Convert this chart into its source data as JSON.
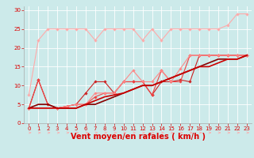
{
  "bg_color": "#cceaea",
  "grid_color": "#ffffff",
  "xlabel": "Vent moyen/en rafales ( km/h )",
  "xlabel_color": "#dd0000",
  "tick_color": "#dd0000",
  "arrow_color": "#ffaaaa",
  "ylim": [
    0,
    31
  ],
  "xlim": [
    -0.5,
    23.5
  ],
  "yticks": [
    0,
    5,
    10,
    15,
    20,
    25,
    30
  ],
  "xticks": [
    0,
    1,
    2,
    3,
    4,
    5,
    6,
    7,
    8,
    9,
    10,
    11,
    12,
    13,
    14,
    15,
    16,
    17,
    18,
    19,
    20,
    21,
    22,
    23
  ],
  "series": [
    {
      "x": [
        0,
        1,
        2,
        3,
        4,
        5,
        6,
        7,
        8,
        9,
        10,
        11,
        12,
        13,
        14,
        15,
        16,
        17,
        18,
        19,
        20,
        21,
        22,
        23
      ],
      "y": [
        7.5,
        22,
        25,
        25,
        25,
        25,
        25,
        22,
        25,
        25,
        25,
        25,
        22,
        25,
        22,
        25,
        25,
        25,
        25,
        25,
        25,
        26,
        29,
        29
      ],
      "color": "#ffaaaa",
      "lw": 0.8,
      "marker": "D",
      "ms": 1.8,
      "zorder": 2
    },
    {
      "x": [
        0,
        1,
        2,
        3,
        4,
        5,
        6,
        7,
        8,
        9,
        10,
        11,
        12,
        13,
        14,
        15,
        16,
        17,
        18,
        19,
        20,
        21,
        22,
        23
      ],
      "y": [
        4,
        11.5,
        5,
        4,
        4.5,
        5,
        8,
        11,
        11,
        8,
        11,
        11,
        11,
        7.5,
        11,
        11,
        11.5,
        11,
        18,
        18,
        18,
        18,
        18,
        18
      ],
      "color": "#cc2222",
      "lw": 0.8,
      "marker": "D",
      "ms": 1.8,
      "zorder": 3
    },
    {
      "x": [
        0,
        1,
        2,
        3,
        4,
        5,
        6,
        7,
        8,
        9,
        10,
        11,
        12,
        13,
        14,
        15,
        16,
        17,
        18,
        19,
        20,
        21,
        22,
        23
      ],
      "y": [
        4,
        11.5,
        5,
        4,
        4.5,
        5,
        5,
        7,
        8,
        8,
        11,
        11,
        11,
        7.5,
        14,
        11,
        11,
        18,
        18,
        18,
        18,
        18,
        18,
        18
      ],
      "color": "#ee4444",
      "lw": 0.8,
      "marker": "D",
      "ms": 1.8,
      "zorder": 3
    },
    {
      "x": [
        0,
        3,
        4,
        5,
        6,
        7,
        8,
        9,
        10,
        11,
        12,
        13,
        14,
        15,
        16,
        17,
        18,
        19,
        20,
        21,
        22,
        23
      ],
      "y": [
        4,
        4,
        4.5,
        5,
        5,
        8,
        8,
        8,
        11,
        14,
        11,
        11,
        14,
        11,
        14.5,
        18,
        18,
        18,
        18,
        18,
        18,
        18
      ],
      "color": "#ff8888",
      "lw": 0.8,
      "marker": "D",
      "ms": 1.8,
      "zorder": 3
    },
    {
      "x": [
        0,
        1,
        2,
        3,
        4,
        5,
        6,
        7,
        8,
        9,
        10,
        11,
        12,
        13,
        14,
        15,
        16,
        17,
        18,
        19,
        20,
        21,
        22,
        23
      ],
      "y": [
        4,
        5,
        5,
        4,
        4,
        4,
        5,
        5,
        6,
        7,
        8,
        9,
        10,
        10,
        11,
        12,
        13,
        14,
        15,
        16,
        17,
        17,
        17,
        18
      ],
      "color": "#880000",
      "lw": 1.2,
      "marker": null,
      "ms": 0,
      "zorder": 4
    },
    {
      "x": [
        0,
        1,
        2,
        3,
        4,
        5,
        6,
        7,
        8,
        9,
        10,
        11,
        12,
        13,
        14,
        15,
        16,
        17,
        18,
        19,
        20,
        21,
        22,
        23
      ],
      "y": [
        4,
        4,
        4,
        4,
        4,
        4,
        5,
        6,
        7,
        7.5,
        8,
        9,
        10,
        10,
        11,
        12,
        13,
        14,
        15,
        15,
        16,
        17,
        17,
        18
      ],
      "color": "#cc0000",
      "lw": 1.2,
      "marker": null,
      "ms": 0,
      "zorder": 4
    }
  ],
  "spine_color": "#aaaaaa",
  "xlabel_fontsize": 7,
  "xlabel_fontweight": "bold",
  "tick_fontsize": 5
}
